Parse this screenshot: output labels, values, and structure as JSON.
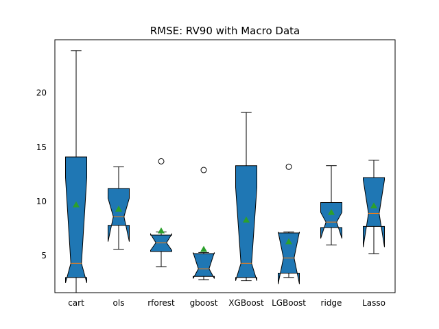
{
  "chart_data": {
    "type": "box",
    "title": "RMSE: RV90 with Macro Data",
    "xlabel": "",
    "ylabel": "",
    "categories": [
      "cart",
      "ols",
      "rforest",
      "gboost",
      "XGBoost",
      "LGBoost",
      "ridge",
      "Lasso"
    ],
    "ylim": [
      1.6,
      24.9
    ],
    "yticks": [
      5,
      10,
      15,
      20
    ],
    "grid": false,
    "box_color": "#1f77b4",
    "median_color": "#ff7f0e",
    "mean_color": "#2ca02c",
    "boxes": [
      {
        "whislo": 1.0,
        "q1": 3.0,
        "med": 4.3,
        "q3": 14.1,
        "whishi": 23.9,
        "notchlo": 2.5,
        "notchhi": 12.2,
        "mean": 9.7,
        "fliers": []
      },
      {
        "whislo": 5.6,
        "q1": 7.8,
        "med": 8.6,
        "q3": 11.2,
        "whishi": 13.2,
        "notchlo": 6.3,
        "notchhi": 10.3,
        "mean": 9.3,
        "fliers": []
      },
      {
        "whislo": 4.0,
        "q1": 5.4,
        "med": 6.2,
        "q3": 6.9,
        "whishi": 7.2,
        "notchlo": 5.5,
        "notchhi": 7.0,
        "mean": 7.3,
        "fliers": [
          13.7
        ]
      },
      {
        "whislo": 2.8,
        "q1": 3.1,
        "med": 3.8,
        "q3": 5.2,
        "whishi": 5.3,
        "notchlo": 2.9,
        "notchhi": 5.3,
        "mean": 5.6,
        "fliers": [
          12.9
        ]
      },
      {
        "whislo": 2.7,
        "q1": 3.0,
        "med": 4.3,
        "q3": 13.3,
        "whishi": 18.2,
        "notchlo": 2.7,
        "notchhi": 11.3,
        "mean": 8.3,
        "fliers": []
      },
      {
        "whislo": 3.0,
        "q1": 3.4,
        "med": 4.8,
        "q3": 7.1,
        "whishi": 7.2,
        "notchlo": 2.4,
        "notchhi": 7.2,
        "mean": 6.3,
        "fliers": [
          13.2
        ]
      },
      {
        "whislo": 6.0,
        "q1": 7.6,
        "med": 8.1,
        "q3": 9.9,
        "whishi": 13.3,
        "notchlo": 6.6,
        "notchhi": 9.0,
        "mean": 9.0,
        "fliers": []
      },
      {
        "whislo": 5.2,
        "q1": 7.7,
        "med": 8.9,
        "q3": 12.2,
        "whishi": 13.8,
        "notchlo": 5.8,
        "notchhi": 12.0,
        "mean": 9.6,
        "fliers": []
      }
    ]
  }
}
